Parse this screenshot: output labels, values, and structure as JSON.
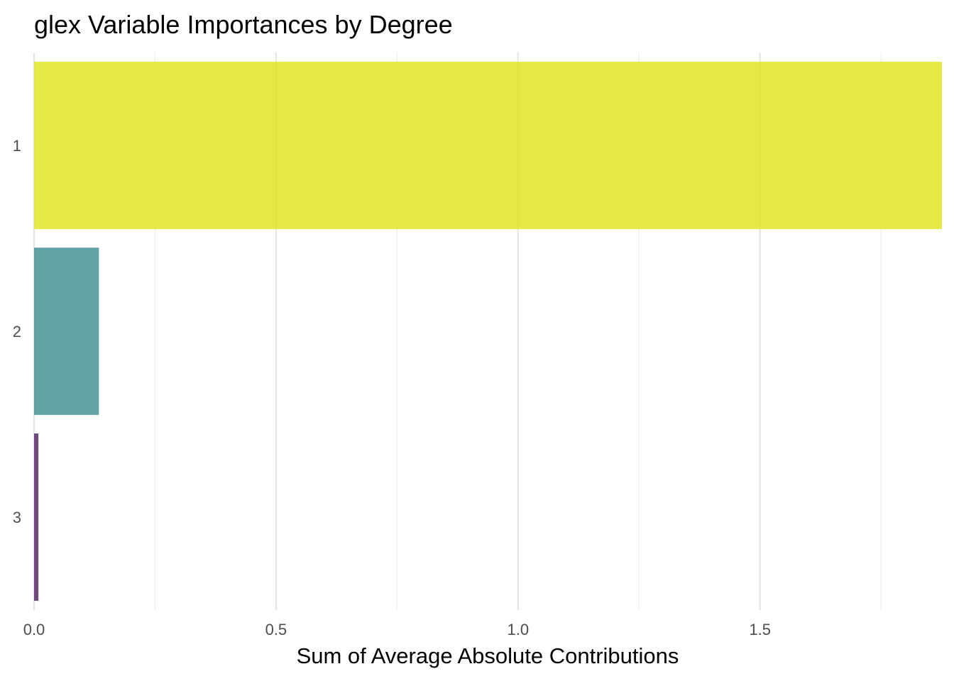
{
  "chart_data": {
    "type": "bar",
    "orientation": "horizontal",
    "title": "glex Variable Importances by Degree",
    "xlabel": "Sum of Average Absolute Contributions",
    "ylabel": "",
    "categories": [
      "1",
      "2",
      "3"
    ],
    "values": [
      1.876,
      0.134,
      0.009
    ],
    "colors": [
      "#dde318",
      "#3b8b8e",
      "#4b1d60"
    ],
    "bar_opacity": 0.8,
    "xlim": [
      0,
      1.876
    ],
    "x_ticks": [
      0.0,
      0.5,
      1.0,
      1.5
    ],
    "x_tick_labels": [
      "0.0",
      "0.5",
      "1.0",
      "1.5"
    ],
    "x_minor_ticks": [
      0.25,
      0.75,
      1.25,
      1.75
    ],
    "grid": "vertical",
    "legend": "none"
  }
}
